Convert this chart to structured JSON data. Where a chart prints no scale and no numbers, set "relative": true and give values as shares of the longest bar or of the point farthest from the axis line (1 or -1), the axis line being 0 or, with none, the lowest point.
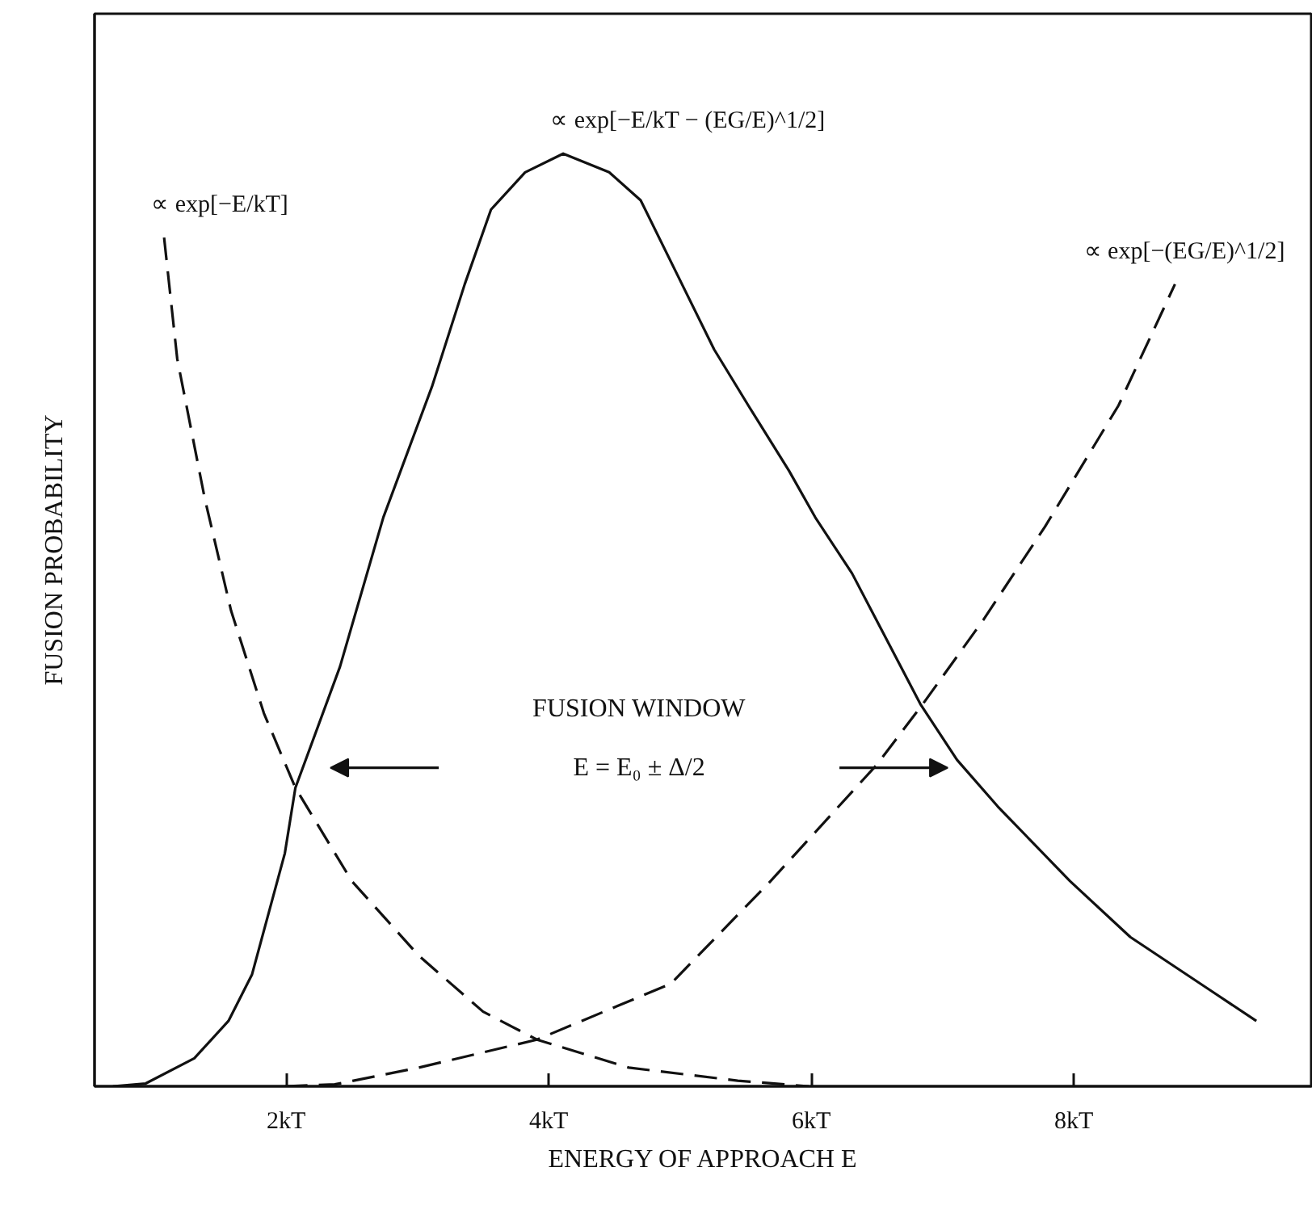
{
  "chart_data": {
    "type": "line",
    "relative": true,
    "xlabel": "ENERGY OF APPROACH E",
    "ylabel": "FUSION PROBABILITY",
    "xlim": [
      0.54,
      9.82
    ],
    "xticks": [
      {
        "value": 2,
        "label": "2kT"
      },
      {
        "value": 4,
        "label": "4kT"
      },
      {
        "value": 6,
        "label": "6kT"
      },
      {
        "value": 8,
        "label": "8kT"
      }
    ],
    "series": [
      {
        "name": "∝ exp[−E/kT]",
        "color": "#111111",
        "line_style": "dashed",
        "x": [
          1.07,
          1.17,
          1.38,
          1.58,
          1.83,
          2.07,
          2.5,
          3.01,
          3.5,
          3.91,
          4.61,
          5.44,
          5.98
        ],
        "values": [
          0.91,
          0.78,
          0.63,
          0.51,
          0.4,
          0.32,
          0.22,
          0.14,
          0.08,
          0.05,
          0.02,
          0.006,
          0
        ]
      },
      {
        "name": "∝ exp[−E/kT − (EG/E)^1/2]",
        "color": "#111111",
        "line_style": "solid",
        "x": [
          0.68,
          0.93,
          1.3,
          1.56,
          1.74,
          1.99,
          2.07,
          2.41,
          2.74,
          3.11,
          3.36,
          3.56,
          3.82,
          4.11,
          4.46,
          4.7,
          4.98,
          5.26,
          5.52,
          5.83,
          6.03,
          6.31,
          6.83,
          7.11,
          7.42,
          7.97,
          8.43,
          9.07,
          9.39
        ],
        "values": [
          0,
          0.003,
          0.03,
          0.07,
          0.12,
          0.25,
          0.32,
          0.45,
          0.61,
          0.75,
          0.86,
          0.94,
          0.98,
          1,
          0.98,
          0.95,
          0.87,
          0.79,
          0.73,
          0.66,
          0.61,
          0.55,
          0.41,
          0.35,
          0.3,
          0.22,
          0.16,
          0.1,
          0.07
        ]
      },
      {
        "name": "∝ exp[−(EG/E)^1/2]",
        "color": "#111111",
        "line_style": "dashed",
        "x": [
          1.99,
          2.37,
          3.01,
          3.91,
          4.93,
          5.69,
          6.5,
          6.85,
          7.31,
          7.78,
          8.34,
          8.77
        ],
        "values": [
          0,
          0.002,
          0.02,
          0.05,
          0.11,
          0.22,
          0.345,
          0.41,
          0.5,
          0.6,
          0.73,
          0.86
        ]
      }
    ],
    "annotations": [
      "FUSION WINDOW",
      "E = E₀ ± Δ/2"
    ]
  }
}
